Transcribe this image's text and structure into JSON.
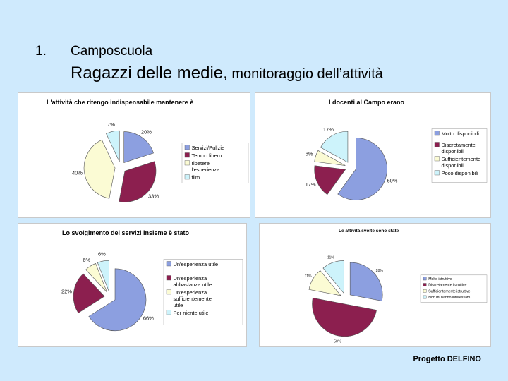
{
  "slide": {
    "number": "1.",
    "title_line1": "Camposcuola",
    "title_main": "Ragazzi delle medie,",
    "title_rest": " monitoraggio dell’attività",
    "footer": "Progetto DELFINO"
  },
  "chart_data": [
    {
      "type": "pie",
      "title": "L'attività che ritengo indispensabile mantenere è",
      "categories": [
        "Servizi/Pulizie",
        "Tempo libero",
        "ripetere l'esperienza",
        "film"
      ],
      "values": [
        20,
        33,
        40,
        7
      ],
      "labels": [
        "20%",
        "33%",
        "40%",
        "7%"
      ],
      "colors": [
        "#8c9fe0",
        "#8c1f4f",
        "#fbfbd4",
        "#cdf3fb"
      ],
      "legend": "right"
    },
    {
      "type": "pie",
      "title": "I docenti al Campo erano",
      "categories": [
        "Molto disponibili",
        "Discretamente disponibili",
        "Sufficientemente disponibili",
        "Poco disponibili"
      ],
      "values": [
        60,
        17,
        6,
        17
      ],
      "labels": [
        "60%",
        "17%",
        "6%",
        "17%"
      ],
      "colors": [
        "#8c9fe0",
        "#8c1f4f",
        "#fbfbd4",
        "#cdf3fb"
      ],
      "legend": "right"
    },
    {
      "type": "pie",
      "title": "Lo svolgimento dei servizi insieme è stato",
      "categories": [
        "Un'esperienza utile",
        "Un'esperienza abbastanza utile",
        "Un'esperienza sufficientemente utile",
        "Per niente utile"
      ],
      "values": [
        66,
        22,
        6,
        6
      ],
      "labels": [
        "66%",
        "22%",
        "6%",
        "6%"
      ],
      "colors": [
        "#8c9fe0",
        "#8c1f4f",
        "#fbfbd4",
        "#cdf3fb"
      ],
      "legend": "right"
    },
    {
      "type": "pie",
      "title": "Le attività svolte sono state",
      "categories": [
        "Molto istruttive",
        "Discretamente istruttive",
        "Sufficientemente istruttive",
        "Non mi hanno interessato"
      ],
      "values": [
        28,
        50,
        11,
        11
      ],
      "labels": [
        "28%",
        "50%",
        "11%",
        "11%"
      ],
      "colors": [
        "#8c9fe0",
        "#8c1f4f",
        "#fbfbd4",
        "#cdf3fb"
      ],
      "legend": "right"
    }
  ]
}
